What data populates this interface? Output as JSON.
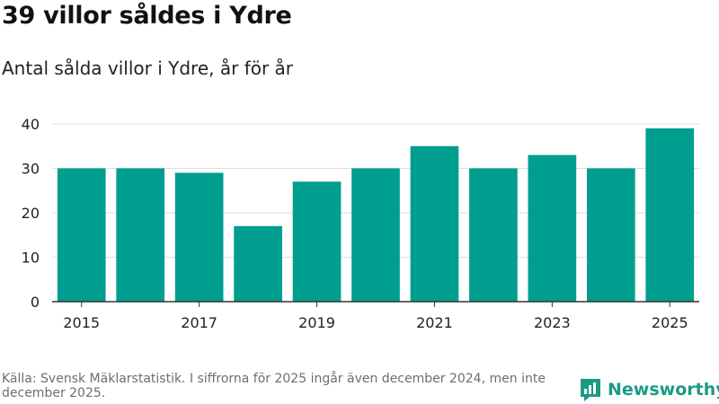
{
  "title": "39 villor såldes i Ydre",
  "subtitle": "Antal sålda villor i Ydre, år för år",
  "footer": "Källa: Svensk Mäklarstatistik. I siffrorna för 2025 ingår även december 2024, men inte december 2025.",
  "brand": "Newsworthy",
  "colors": {
    "bar": "#009e8f",
    "grid": "#dddddd",
    "axis": "#333333",
    "brand": "#1b9a84"
  },
  "chart_data": {
    "type": "bar",
    "title": "39 villor såldes i Ydre",
    "subtitle": "Antal sålda villor i Ydre, år för år",
    "categories": [
      "2015",
      "2016",
      "2017",
      "2018",
      "2019",
      "2020",
      "2021",
      "2022",
      "2023",
      "2024",
      "2025"
    ],
    "values": [
      30,
      30,
      29,
      17,
      27,
      30,
      35,
      30,
      33,
      30,
      39
    ],
    "xtick_labels": [
      "2015",
      "2017",
      "2019",
      "2021",
      "2023",
      "2025"
    ],
    "yticks": [
      0,
      10,
      20,
      30,
      40
    ],
    "ylim": [
      0,
      40
    ],
    "xlabel": "",
    "ylabel": "",
    "grid": true
  }
}
